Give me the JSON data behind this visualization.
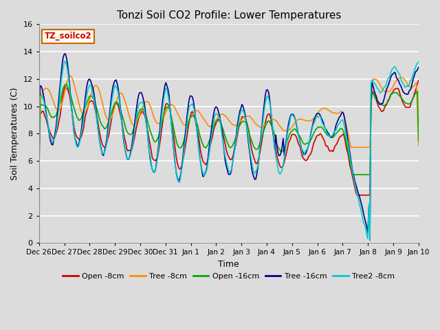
{
  "title": "Tonzi Soil CO2 Profile: Lower Temperatures",
  "xlabel": "Time",
  "ylabel": "Soil Temperatures (C)",
  "ylim": [
    0,
    16
  ],
  "yticks": [
    0,
    2,
    4,
    6,
    8,
    10,
    12,
    14,
    16
  ],
  "label_box": "TZ_soilco2",
  "bg_color": "#dcdcdc",
  "series_colors": {
    "Open -8cm": "#cc0000",
    "Tree -8cm": "#ff8c00",
    "Open -16cm": "#00aa00",
    "Tree -16cm": "#00008b",
    "Tree2 -8cm": "#00cccc"
  },
  "xtick_labels": [
    "Dec 26",
    "Dec 27",
    "Dec 28",
    "Dec 29",
    "Dec 30",
    "Dec 31",
    "Jan 1",
    "Jan 2",
    "Jan 3",
    "Jan 4",
    "Jan 5",
    "Jan 6",
    "Jan 7",
    "Jan 8",
    "Jan 9",
    "Jan 10"
  ],
  "lw": 1.2,
  "title_fontsize": 11,
  "axis_fontsize": 9,
  "tick_fontsize": 7.5,
  "legend_fontsize": 8
}
